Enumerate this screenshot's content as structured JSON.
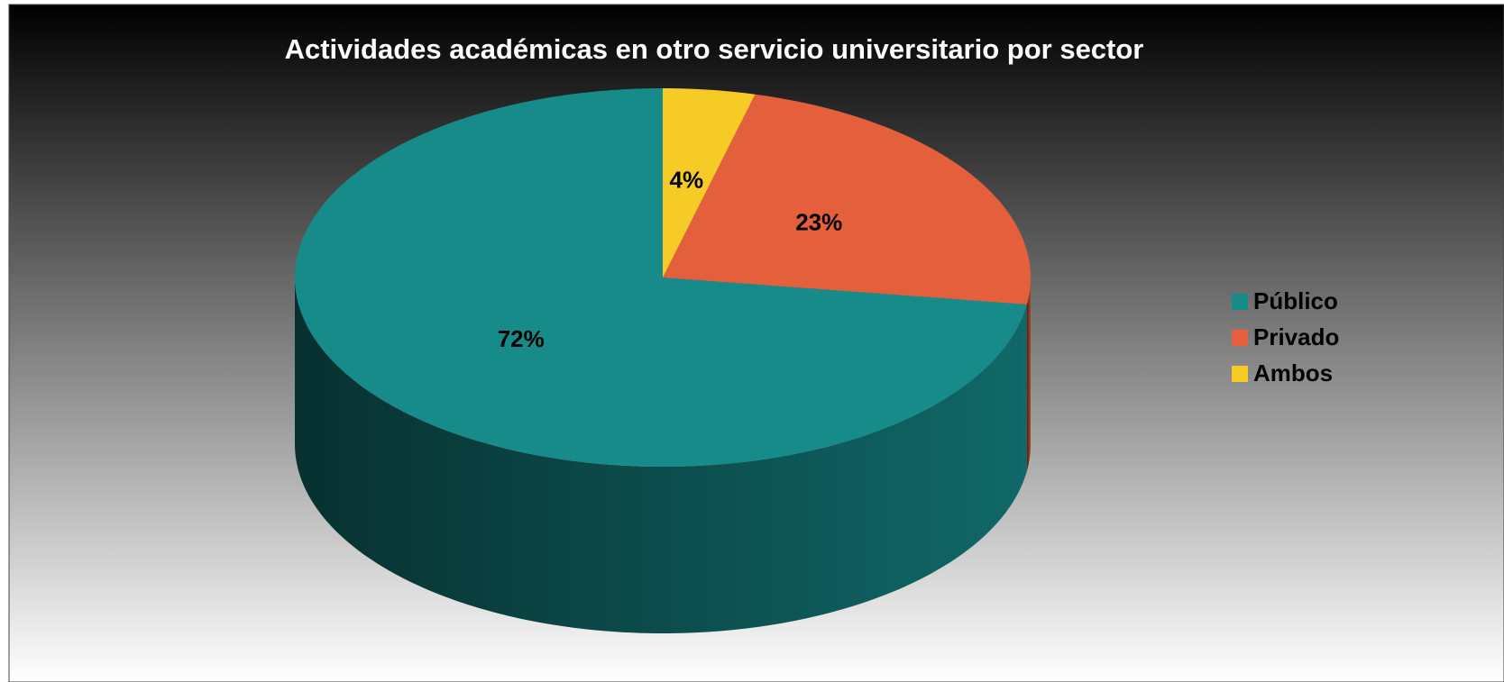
{
  "chart_data": {
    "type": "pie",
    "title": "Actividades académicas en otro servicio universitario por sector",
    "categories": [
      "Público",
      "Privado",
      "Ambos"
    ],
    "values": [
      72,
      23,
      4
    ],
    "value_labels": [
      "72%",
      "23%",
      "4%"
    ],
    "colors": [
      "#178a8a",
      "#e45f3c",
      "#f7cb25"
    ],
    "legend": "right"
  }
}
